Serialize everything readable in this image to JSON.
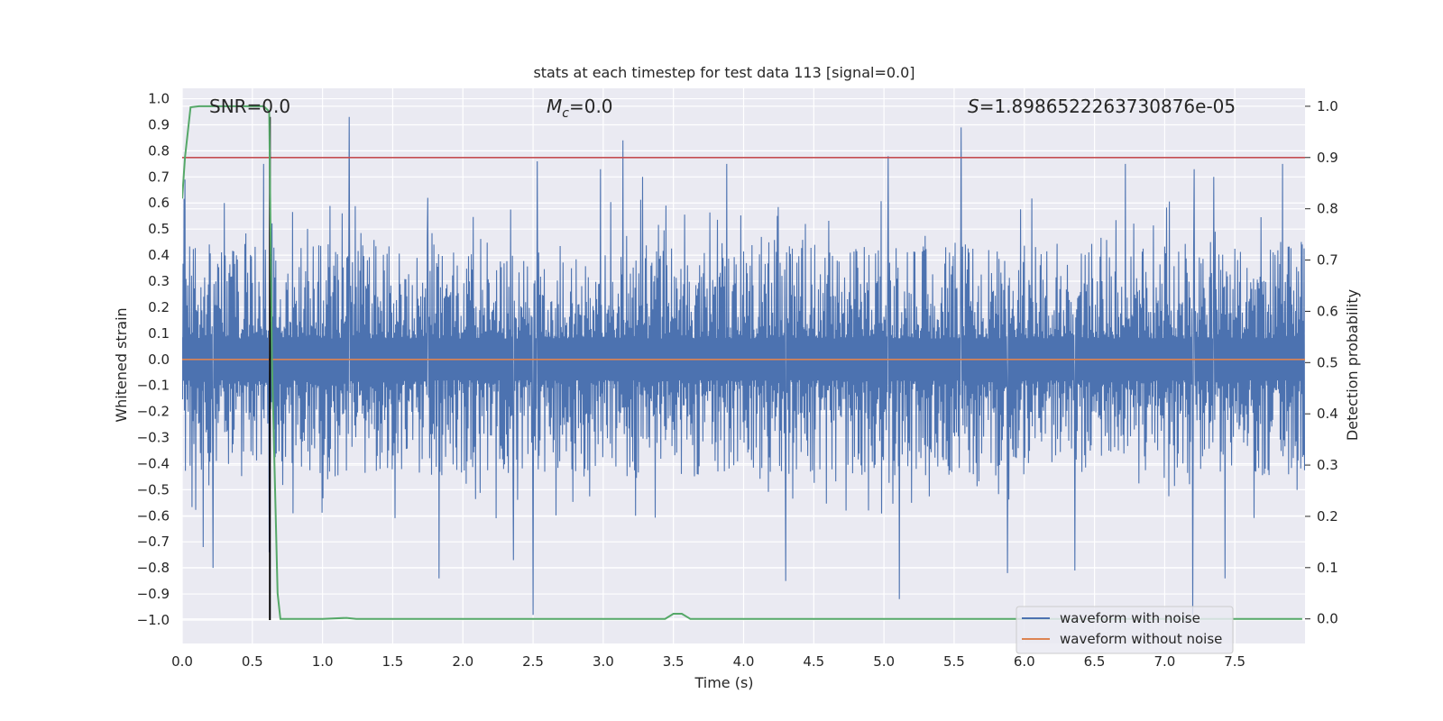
{
  "chart_data": {
    "type": "line",
    "title": "stats at each timestep for test data 113 [signal=0.0]",
    "xlabel": "Time (s)",
    "ylabel_left": "Whitened strain",
    "ylabel_right": "Detection probability",
    "xlim": [
      0.0,
      8.0
    ],
    "ylim_left": [
      -1.09,
      1.04
    ],
    "ylim_right": [
      -0.048,
      1.035
    ],
    "x_ticks": [
      "0.0",
      "0.5",
      "1.0",
      "1.5",
      "2.0",
      "2.5",
      "3.0",
      "3.5",
      "4.0",
      "4.5",
      "5.0",
      "5.5",
      "6.0",
      "6.5",
      "7.0",
      "7.5"
    ],
    "x_tick_values": [
      0,
      0.5,
      1.0,
      1.5,
      2.0,
      2.5,
      3.0,
      3.5,
      4.0,
      4.5,
      5.0,
      5.5,
      6.0,
      6.5,
      7.0,
      7.5
    ],
    "y_left_ticks": [
      "1.0",
      "0.9",
      "0.8",
      "0.7",
      "0.6",
      "0.5",
      "0.4",
      "0.3",
      "0.2",
      "0.1",
      "0.0",
      "−0.1",
      "−0.2",
      "−0.3",
      "−0.4",
      "−0.5",
      "−0.6",
      "−0.7",
      "−0.8",
      "−0.9",
      "−1.0"
    ],
    "y_left_tick_values": [
      1.0,
      0.9,
      0.8,
      0.7,
      0.6,
      0.5,
      0.4,
      0.3,
      0.2,
      0.1,
      0.0,
      -0.1,
      -0.2,
      -0.3,
      -0.4,
      -0.5,
      -0.6,
      -0.7,
      -0.8,
      -0.9,
      -1.0
    ],
    "y_right_ticks": [
      "1.0",
      "0.9",
      "0.8",
      "0.7",
      "0.6",
      "0.5",
      "0.4",
      "0.3",
      "0.2",
      "0.1",
      "0.0"
    ],
    "y_right_tick_values": [
      1.0,
      0.9,
      0.8,
      0.7,
      0.6,
      0.5,
      0.4,
      0.3,
      0.2,
      0.1,
      0.0
    ],
    "annotations": {
      "snr": "SNR=0.0",
      "mc_symbol": "M",
      "mc_sub": "c",
      "mc_value": "=0.0",
      "s_symbol": "S",
      "s_value": "=1.8986522263730876e-05"
    },
    "series": [
      {
        "name": "waveform with noise",
        "axis": "left",
        "color": "#4c72b0",
        "style": "dense noise",
        "typical_range": [
          -0.45,
          0.45
        ],
        "spikes": [
          [
            0.02,
            0.69
          ],
          [
            0.15,
            -0.72
          ],
          [
            0.22,
            -0.8
          ],
          [
            0.3,
            0.6
          ],
          [
            0.58,
            0.75
          ],
          [
            0.62,
            -0.74
          ],
          [
            1.19,
            0.93
          ],
          [
            1.75,
            0.62
          ],
          [
            1.83,
            -0.84
          ],
          [
            2.36,
            -0.77
          ],
          [
            2.5,
            -0.98
          ],
          [
            2.53,
            0.76
          ],
          [
            2.98,
            0.73
          ],
          [
            3.14,
            0.84
          ],
          [
            3.28,
            0.7
          ],
          [
            3.88,
            0.75
          ],
          [
            4.3,
            -0.85
          ],
          [
            4.73,
            -0.58
          ],
          [
            5.03,
            0.78
          ],
          [
            5.11,
            -0.92
          ],
          [
            5.55,
            0.89
          ],
          [
            5.88,
            -0.82
          ],
          [
            6.36,
            -0.81
          ],
          [
            6.72,
            0.75
          ],
          [
            7.2,
            -0.98
          ],
          [
            7.21,
            0.73
          ],
          [
            7.35,
            0.7
          ],
          [
            7.43,
            -0.84
          ],
          [
            7.84,
            0.75
          ]
        ]
      },
      {
        "name": "waveform without noise",
        "axis": "left",
        "color": "#dd8452",
        "constant": 0.0
      },
      {
        "name": "detection probability",
        "axis": "right",
        "color": "#55a868",
        "x": [
          0.0,
          0.02,
          0.06,
          0.12,
          0.5,
          0.58,
          0.62,
          0.64,
          0.68,
          0.7,
          0.73,
          1.0,
          1.17,
          1.24,
          2.0,
          3.0,
          3.44,
          3.5,
          3.56,
          3.62,
          4.5,
          5.0,
          6.0,
          7.0,
          7.98
        ],
        "values": [
          0.82,
          0.9,
          0.998,
          1.0,
          1.0,
          1.0,
          0.99,
          0.5,
          0.05,
          0.0,
          0.0,
          0.0,
          0.002,
          0.0,
          0.0,
          0.0,
          0.0,
          0.01,
          0.01,
          0.0,
          0.0,
          0.0,
          0.0,
          0.0,
          0.0
        ]
      }
    ],
    "threshold": {
      "axis": "right",
      "value": 0.9,
      "color": "#c44e52"
    },
    "vline": {
      "x": 0.625,
      "color": "#000000",
      "y_from": -1.0,
      "y_to": 0.93
    },
    "legend": {
      "position": "lower-right",
      "entries": [
        "waveform with noise",
        "waveform without noise"
      ]
    },
    "grid": true,
    "background": "#eaeaf2"
  }
}
